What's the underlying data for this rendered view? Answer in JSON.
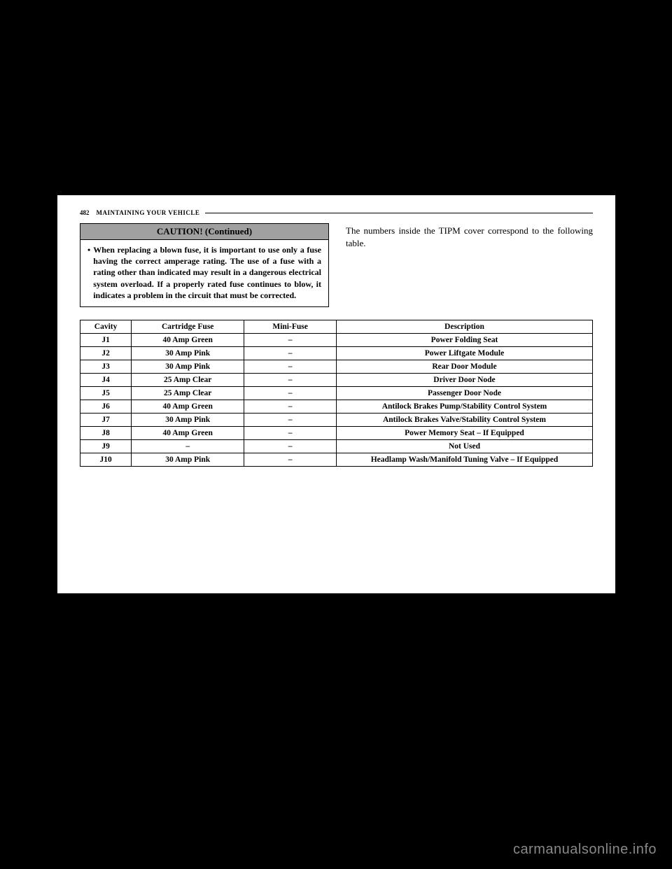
{
  "header": {
    "page_number": "482",
    "section": "MAINTAINING YOUR VEHICLE"
  },
  "caution": {
    "title": "CAUTION! (Continued)",
    "bullet": "•",
    "text": "When replacing a blown fuse, it is important to use only a fuse having the correct amperage rating. The use of a fuse with a rating other than indicated may result in a dangerous electrical system overload. If a properly rated fuse continues to blow, it indicates a problem in the circuit that must be corrected."
  },
  "right": {
    "text": "The numbers inside the TIPM cover correspond to the following table."
  },
  "table": {
    "headers": {
      "cavity": "Cavity",
      "cartridge": "Cartridge Fuse",
      "mini": "Mini-Fuse",
      "desc": "Description"
    },
    "rows": [
      {
        "cavity": "J1",
        "cartridge": "40 Amp Green",
        "mini": "–",
        "desc": "Power Folding Seat"
      },
      {
        "cavity": "J2",
        "cartridge": "30 Amp Pink",
        "mini": "–",
        "desc": "Power Liftgate Module"
      },
      {
        "cavity": "J3",
        "cartridge": "30 Amp Pink",
        "mini": "–",
        "desc": "Rear Door Module"
      },
      {
        "cavity": "J4",
        "cartridge": "25 Amp Clear",
        "mini": "–",
        "desc": "Driver Door Node"
      },
      {
        "cavity": "J5",
        "cartridge": "25 Amp Clear",
        "mini": "–",
        "desc": "Passenger Door Node"
      },
      {
        "cavity": "J6",
        "cartridge": "40 Amp Green",
        "mini": "–",
        "desc": "Antilock Brakes Pump/Stability Control System"
      },
      {
        "cavity": "J7",
        "cartridge": "30 Amp Pink",
        "mini": "–",
        "desc": "Antilock Brakes Valve/Stability Control System"
      },
      {
        "cavity": "J8",
        "cartridge": "40 Amp Green",
        "mini": "–",
        "desc": "Power Memory Seat – If Equipped"
      },
      {
        "cavity": "J9",
        "cartridge": "–",
        "mini": "–",
        "desc": "Not Used"
      },
      {
        "cavity": "J10",
        "cartridge": "30 Amp Pink",
        "mini": "–",
        "desc": "Headlamp Wash/Manifold Tuning Valve – If Equipped"
      }
    ]
  },
  "watermark": "carmanualsonline.info"
}
